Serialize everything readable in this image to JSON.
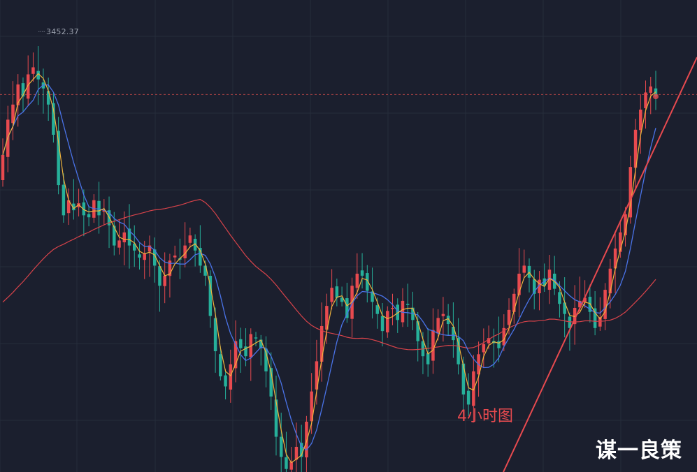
{
  "chart_data": {
    "type": "candlestick",
    "timeframe_label": "4小时图",
    "high_marker": "3452.37",
    "watermark": "谋一良策",
    "colors": {
      "background": "#1b1f2e",
      "grid": "#262c3b",
      "up": "#e84a4f",
      "down": "#26b09a",
      "ma_fast": "#f0b33c",
      "ma_mid": "#4a73e8",
      "ma_slow": "#d8434a",
      "trendline": "#e84a4f",
      "price_line": "#c94a4a"
    },
    "price_range": [
      3045,
      3500
    ],
    "reference_price": 3420,
    "candles_close": [
      3360,
      3395,
      3410,
      3430,
      3418,
      3440,
      3447,
      3435,
      3426,
      3410,
      3380,
      3330,
      3300,
      3315,
      3305,
      3312,
      3300,
      3298,
      3315,
      3300,
      3305,
      3290,
      3270,
      3275,
      3283,
      3270,
      3265,
      3258,
      3262,
      3270,
      3250,
      3230,
      3240,
      3255,
      3260,
      3256,
      3270,
      3280,
      3265,
      3250,
      3240,
      3200,
      3165,
      3140,
      3130,
      3152,
      3175,
      3168,
      3160,
      3182,
      3178,
      3168,
      3145,
      3120,
      3080,
      3060,
      3048,
      3055,
      3070,
      3060,
      3095,
      3125,
      3155,
      3190,
      3210,
      3228,
      3218,
      3214,
      3198,
      3230,
      3242,
      3240,
      3225,
      3214,
      3202,
      3185,
      3205,
      3208,
      3196,
      3215,
      3212,
      3196,
      3175,
      3160,
      3152,
      3186,
      3198,
      3202,
      3192,
      3176,
      3152,
      3122,
      3112,
      3145,
      3162,
      3172,
      3178,
      3173,
      3168,
      3188,
      3206,
      3222,
      3242,
      3250,
      3238,
      3222,
      3236,
      3230,
      3246,
      3227,
      3212,
      3202,
      3188,
      3208,
      3215,
      3218,
      3204,
      3188,
      3199,
      3226,
      3247,
      3267,
      3283,
      3301,
      3348,
      3385,
      3405,
      3422,
      3428,
      3418
    ]
  }
}
